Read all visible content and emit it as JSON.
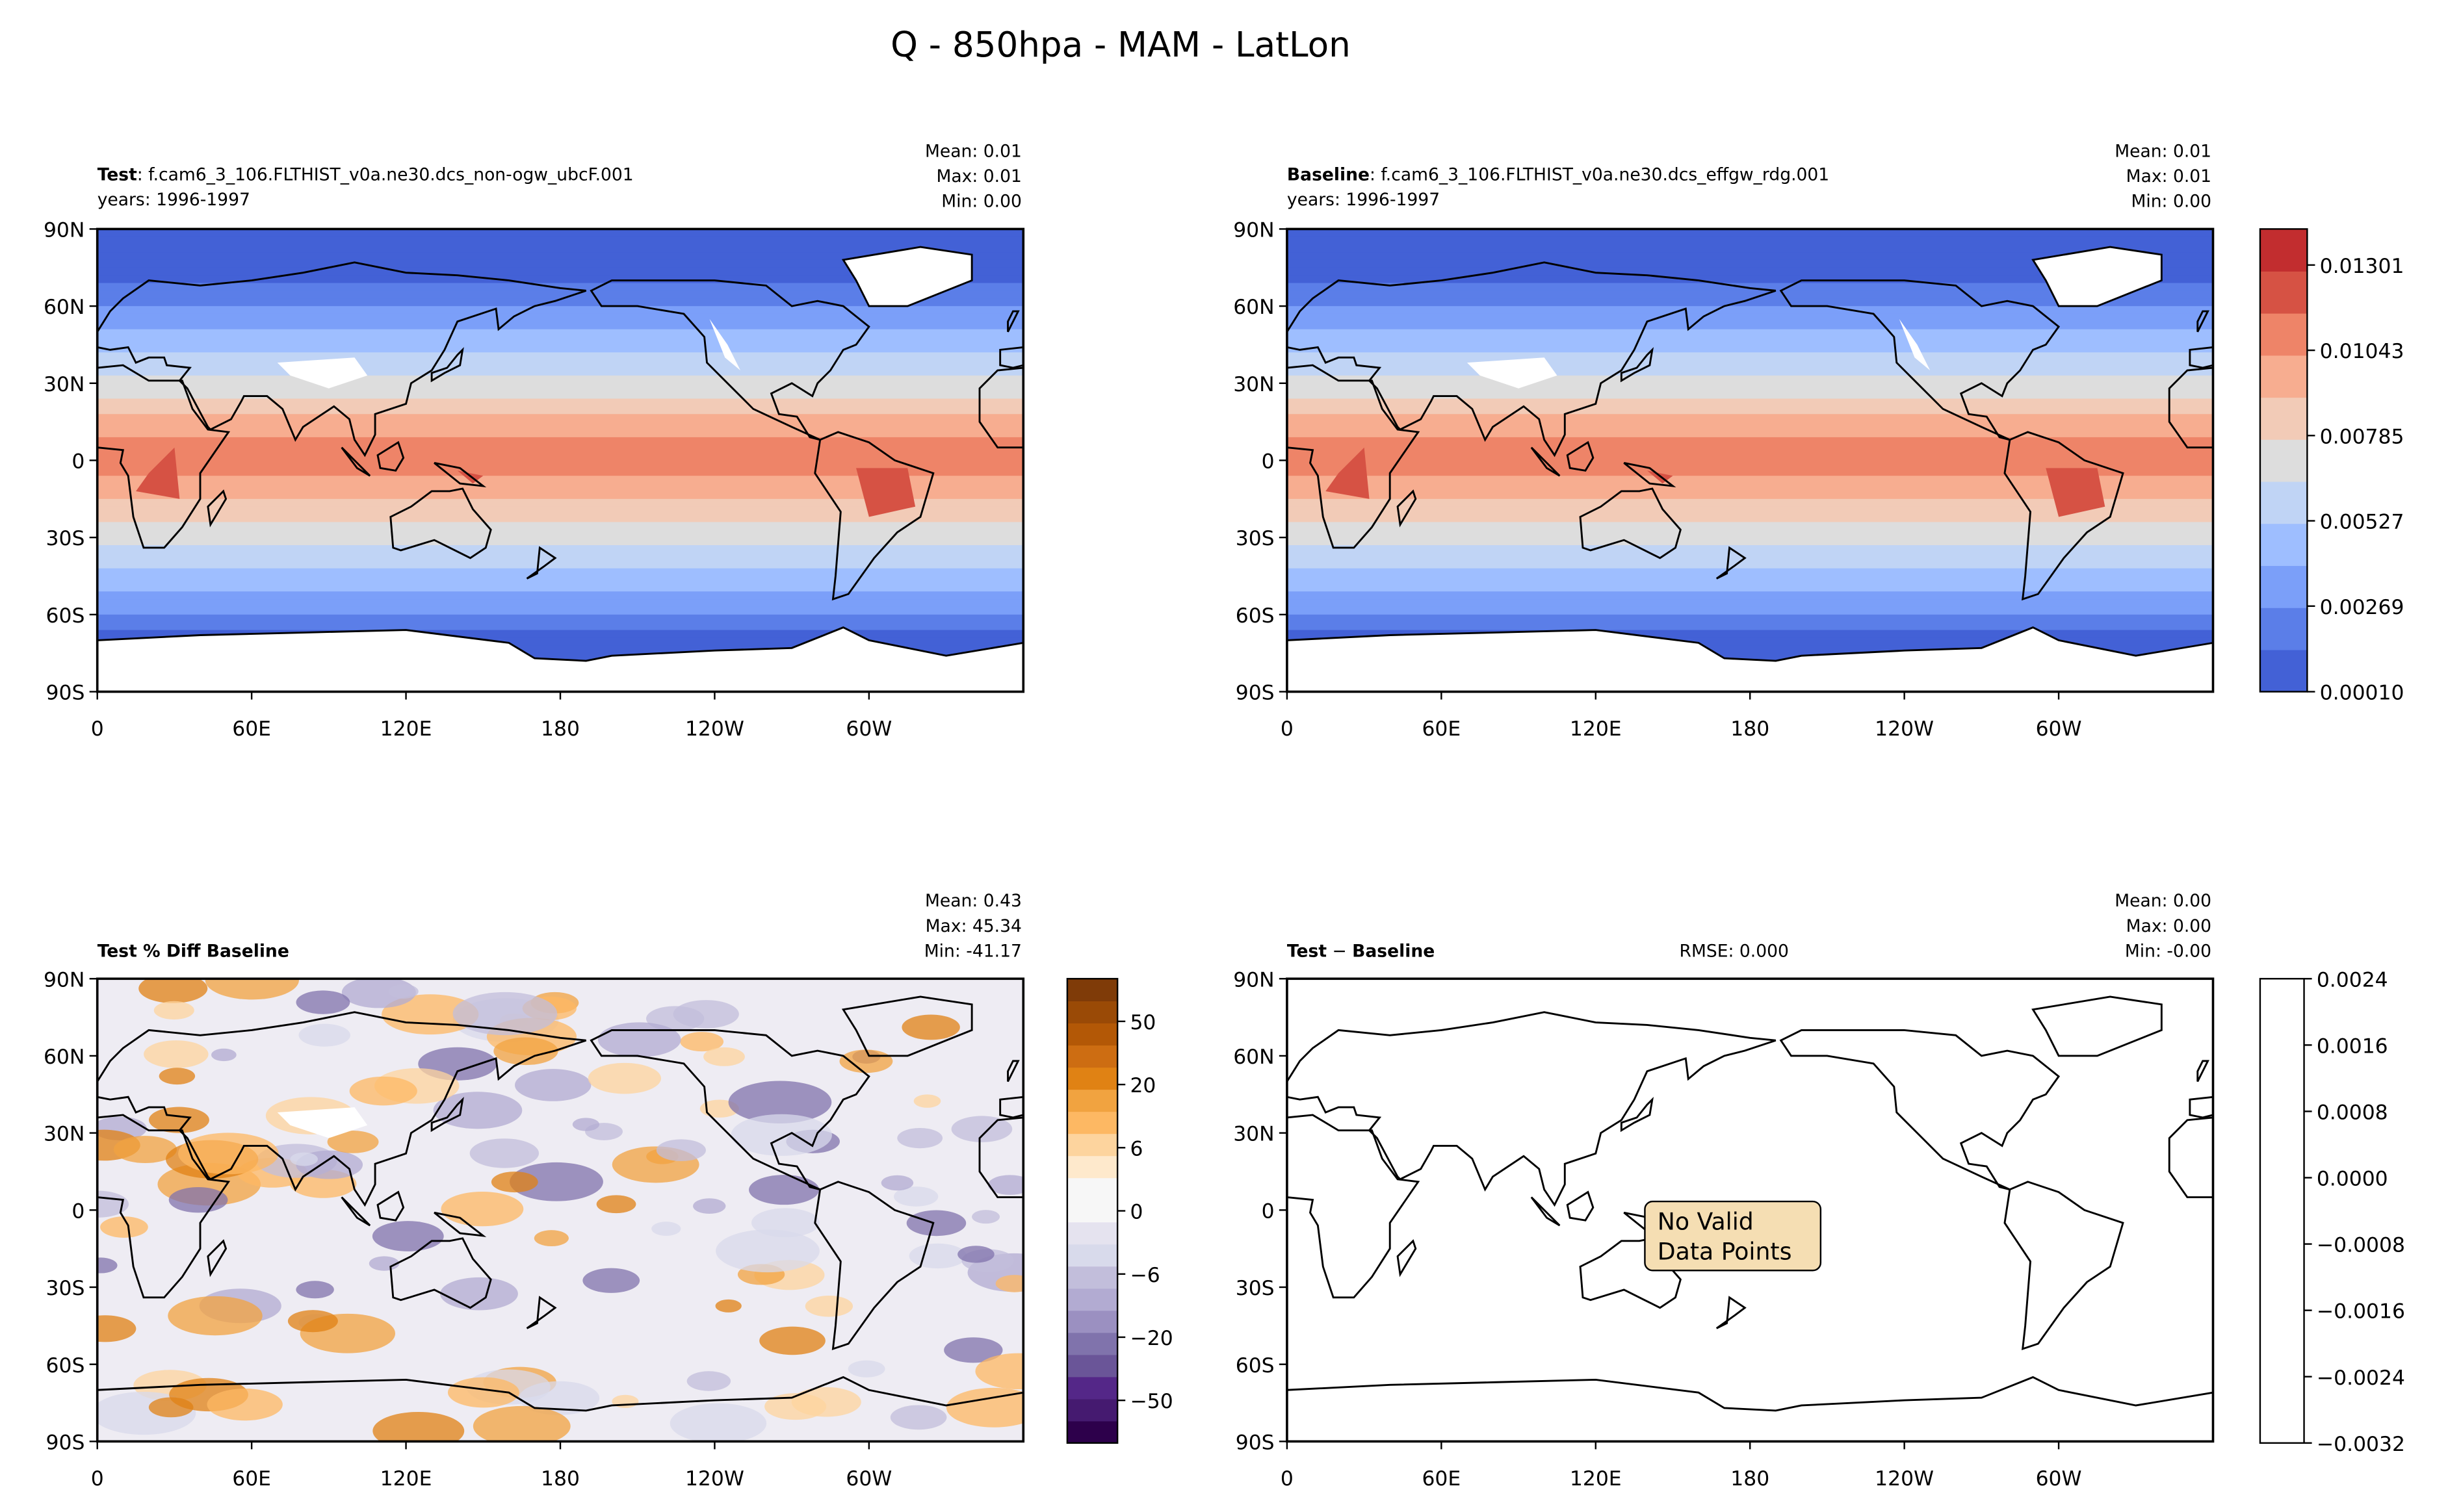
{
  "title": "Q - 850hpa - MAM - LatLon",
  "chart_data": [
    {
      "type": "map",
      "header": {
        "label": "Test",
        "text": ": f.cam6_3_106.FLTHIST_v0a.ne30.dcs_non-ogw_ubcF.001",
        "years": "years: 1996-1997"
      },
      "stats": [
        "Mean:  0.01",
        "Max:  0.01",
        "Min:  0.00"
      ],
      "xlim": [
        0,
        360
      ],
      "xticks": [
        0,
        {
          "value": 60,
          "label": "60E"
        },
        {
          "value": 120,
          "label": "120E"
        },
        180,
        {
          "value": 240,
          "label": "120W"
        },
        {
          "value": 300,
          "label": "60W"
        }
      ],
      "ylim": [
        -90,
        90
      ],
      "yticks": [
        {
          "value": 90,
          "label": "90N"
        },
        {
          "value": 60,
          "label": "60N"
        },
        {
          "value": 30,
          "label": "30N"
        },
        0,
        {
          "value": -30,
          "label": "30S"
        },
        {
          "value": -60,
          "label": "60S"
        },
        {
          "value": -90,
          "label": "90S"
        }
      ]
    },
    {
      "type": "map",
      "header": {
        "label": "Baseline",
        "text": ": f.cam6_3_106.FLTHIST_v0a.ne30.dcs_effgw_rdg.001",
        "years": "years: 1996-1997"
      },
      "stats": [
        "Mean:  0.01",
        "Max:  0.01",
        "Min:  0.00"
      ],
      "xlim": [
        0,
        360
      ],
      "xticks": [
        0,
        {
          "value": 60,
          "label": "60E"
        },
        {
          "value": 120,
          "label": "120E"
        },
        180,
        {
          "value": 240,
          "label": "120W"
        },
        {
          "value": 300,
          "label": "60W"
        }
      ],
      "ylim": [
        -90,
        90
      ],
      "yticks": [
        {
          "value": 90,
          "label": "90N"
        },
        {
          "value": 60,
          "label": "60N"
        },
        {
          "value": 30,
          "label": "30N"
        },
        0,
        {
          "value": -30,
          "label": "30S"
        },
        {
          "value": -60,
          "label": "60S"
        },
        {
          "value": -90,
          "label": "90S"
        }
      ],
      "colorbar": {
        "lim": [
          0.0001,
          0.0141
        ],
        "ticks": [
          {
            "value": 0.0001,
            "label": "0.00010"
          },
          {
            "value": 0.00269,
            "label": "0.00269"
          },
          {
            "value": 0.00527,
            "label": "0.00527"
          },
          {
            "value": 0.00785,
            "label": "0.00785"
          },
          {
            "value": 0.01043,
            "label": "0.01043"
          },
          {
            "value": 0.01301,
            "label": "0.01301"
          }
        ],
        "colors": [
          "#4361d6",
          "#5b7ee8",
          "#7b9ff9",
          "#9ebeff",
          "#c0d4f5",
          "#dddddd",
          "#f2cbb7",
          "#f7ad90",
          "#ee8468",
          "#d65244",
          "#c22d2f"
        ]
      }
    },
    {
      "type": "map",
      "header": {
        "label": "Test % Diff Baseline"
      },
      "stats": [
        "Mean:  0.43",
        "Max: 45.34",
        "Min: -41.17"
      ],
      "xlim": [
        0,
        360
      ],
      "xticks": [
        0,
        {
          "value": 60,
          "label": "60E"
        },
        {
          "value": 120,
          "label": "120E"
        },
        180,
        {
          "value": 240,
          "label": "120W"
        },
        {
          "value": 300,
          "label": "60W"
        }
      ],
      "ylim": [
        -90,
        90
      ],
      "yticks": [
        {
          "value": 90,
          "label": "90N"
        },
        {
          "value": 60,
          "label": "60N"
        },
        {
          "value": 30,
          "label": "30N"
        },
        0,
        {
          "value": -30,
          "label": "30S"
        },
        {
          "value": -60,
          "label": "60S"
        },
        {
          "value": -90,
          "label": "90S"
        }
      ],
      "colorbar": {
        "ticks": [
          50,
          20,
          6,
          0,
          {
            "value": -6,
            "label": "−6"
          },
          {
            "value": -20,
            "label": "−20"
          },
          {
            "value": -50,
            "label": "−50"
          }
        ],
        "colors": [
          "#7f3b08",
          "#9a4a06",
          "#b35806",
          "#cd6d12",
          "#e08214",
          "#f1a340",
          "#fdb863",
          "#fdd49e",
          "#fee9cc",
          "#f7f7f7",
          "#f7f7f7",
          "#e5e3ef",
          "#d8daeb",
          "#c2bedb",
          "#b2abd2",
          "#9b90c1",
          "#8073ac",
          "#6a5598",
          "#542788",
          "#451a70",
          "#2d004b"
        ]
      }
    },
    {
      "type": "map",
      "header": {
        "label": "Test",
        "sep": " − ",
        "label2": "Baseline"
      },
      "rmse": "RMSE: 0.000",
      "stats": [
        "Mean:  0.00",
        "Max:  0.00",
        "Min: -0.00"
      ],
      "annotation": [
        "No Valid",
        "Data Points"
      ],
      "xlim": [
        0,
        360
      ],
      "xticks": [
        0,
        {
          "value": 60,
          "label": "60E"
        },
        {
          "value": 120,
          "label": "120E"
        },
        180,
        {
          "value": 240,
          "label": "120W"
        },
        {
          "value": 300,
          "label": "60W"
        }
      ],
      "ylim": [
        -90,
        90
      ],
      "yticks": [
        {
          "value": 90,
          "label": "90N"
        },
        {
          "value": 60,
          "label": "60N"
        },
        {
          "value": 30,
          "label": "30N"
        },
        0,
        {
          "value": -30,
          "label": "30S"
        },
        {
          "value": -60,
          "label": "60S"
        },
        {
          "value": -90,
          "label": "90S"
        }
      ],
      "colorbar": {
        "lim": [
          -0.0032,
          0.0024
        ],
        "ticks": [
          0.0024,
          0.0016,
          0.0008,
          {
            "value": 0,
            "label": "0.0000"
          },
          {
            "value": -0.0008,
            "label": "−0.0008"
          },
          {
            "value": -0.0016,
            "label": "−0.0016"
          },
          {
            "value": -0.0024,
            "label": "−0.0024"
          },
          {
            "value": -0.0032,
            "label": "−0.0032"
          }
        ],
        "colors": [
          "#ffffff"
        ]
      }
    }
  ]
}
